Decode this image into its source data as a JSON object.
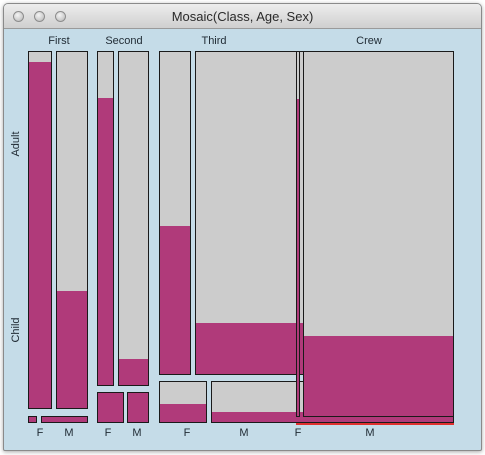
{
  "window": {
    "title": "Mosaic(Class, Age, Sex)"
  },
  "colors": {
    "background": "#c5dce8",
    "female_fill": "#b03a7a",
    "male_fill": "#b03a7a",
    "cell_fill": "#cccccc",
    "cell_border": "#1a1a1a",
    "selection_underline": "#e0302e"
  },
  "chart_data": {
    "type": "mosaic",
    "title": "Mosaic(Class, Age, Sex)",
    "variables": [
      "Class",
      "Age",
      "Sex"
    ],
    "classes": [
      "First",
      "Second",
      "Third",
      "Crew"
    ],
    "ages": [
      "Adult",
      "Child"
    ],
    "sexes": [
      "F",
      "M"
    ],
    "cells": [
      {
        "class": "First",
        "age": "Adult",
        "sex": "F",
        "highlight_fraction": 0.97
      },
      {
        "class": "First",
        "age": "Adult",
        "sex": "M",
        "highlight_fraction": 0.33
      },
      {
        "class": "First",
        "age": "Child",
        "sex": "F",
        "highlight_fraction": 1.0
      },
      {
        "class": "First",
        "age": "Child",
        "sex": "M",
        "highlight_fraction": 1.0
      },
      {
        "class": "Second",
        "age": "Adult",
        "sex": "F",
        "highlight_fraction": 0.86
      },
      {
        "class": "Second",
        "age": "Adult",
        "sex": "M",
        "highlight_fraction": 0.08
      },
      {
        "class": "Second",
        "age": "Child",
        "sex": "F",
        "highlight_fraction": 1.0
      },
      {
        "class": "Second",
        "age": "Child",
        "sex": "M",
        "highlight_fraction": 1.0
      },
      {
        "class": "Third",
        "age": "Adult",
        "sex": "F",
        "highlight_fraction": 0.46
      },
      {
        "class": "Third",
        "age": "Adult",
        "sex": "M",
        "highlight_fraction": 0.16
      },
      {
        "class": "Third",
        "age": "Child",
        "sex": "F",
        "highlight_fraction": 0.45
      },
      {
        "class": "Third",
        "age": "Child",
        "sex": "M",
        "highlight_fraction": 0.27
      },
      {
        "class": "Crew",
        "age": "Adult",
        "sex": "F",
        "highlight_fraction": 0.87
      },
      {
        "class": "Crew",
        "age": "Adult",
        "sex": "M",
        "highlight_fraction": 0.22
      }
    ]
  }
}
